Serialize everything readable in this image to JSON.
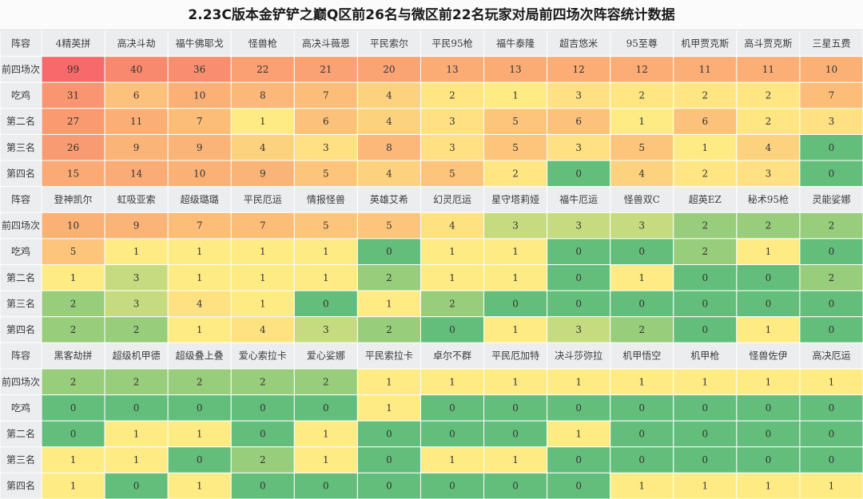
{
  "title": "2.23C版本金铲铲之巅Q区前26名与微区前22名玩家对局前四场次阵容统计数据",
  "chart_data": {
    "type": "heatmap",
    "title": "2.23C版本金铲铲之巅Q区前26名与微区前22名玩家对局前四场次阵容统计数据",
    "corner_label": "阵容",
    "row_labels": [
      "前四场次",
      "吃鸡",
      "第二名",
      "第三名",
      "第四名"
    ],
    "blocks": [
      {
        "columns": [
          "4精英拼",
          "高决斗劫",
          "福牛佛耶戈",
          "怪兽枪",
          "高决斗薇恩",
          "平民索尔",
          "平民95枪",
          "福牛泰隆",
          "超吉悠米",
          "95至尊",
          "机甲贾克斯",
          "高斗贾克斯",
          "三星五费"
        ],
        "rows": [
          [
            99,
            40,
            36,
            22,
            21,
            20,
            13,
            13,
            12,
            12,
            11,
            11,
            10
          ],
          [
            31,
            6,
            10,
            8,
            7,
            4,
            2,
            1,
            3,
            2,
            2,
            2,
            7
          ],
          [
            27,
            11,
            7,
            1,
            6,
            4,
            3,
            5,
            6,
            1,
            6,
            2,
            3
          ],
          [
            26,
            9,
            9,
            4,
            3,
            8,
            3,
            5,
            3,
            5,
            1,
            4,
            0
          ],
          [
            15,
            14,
            10,
            9,
            5,
            4,
            5,
            2,
            0,
            4,
            2,
            3,
            0
          ]
        ]
      },
      {
        "columns": [
          "登神凯尔",
          "虹吸亚索",
          "超级璐璐",
          "平民厄运",
          "情报怪兽",
          "英雄艾希",
          "幻灵厄运",
          "星守塔莉娅",
          "福牛厄运",
          "怪兽双C",
          "超英EZ",
          "秘术95枪",
          "灵能娑娜"
        ],
        "rows": [
          [
            10,
            9,
            7,
            7,
            5,
            5,
            4,
            3,
            3,
            3,
            2,
            2,
            2
          ],
          [
            5,
            1,
            1,
            1,
            1,
            0,
            1,
            1,
            0,
            0,
            2,
            1,
            0
          ],
          [
            1,
            3,
            1,
            1,
            1,
            2,
            1,
            1,
            0,
            1,
            0,
            0,
            2
          ],
          [
            2,
            3,
            4,
            1,
            0,
            1,
            2,
            0,
            0,
            0,
            0,
            0,
            0
          ],
          [
            2,
            2,
            1,
            4,
            3,
            2,
            0,
            1,
            3,
            2,
            0,
            1,
            0
          ]
        ]
      },
      {
        "columns": [
          "黑客劫拼",
          "超级机甲德",
          "超级叠上叠",
          "爱心索拉卡",
          "爱心娑娜",
          "平民索拉卡",
          "卓尔不群",
          "平民厄加特",
          "决斗莎弥拉",
          "机甲悟空",
          "机甲枪",
          "怪兽佐伊",
          "高决厄运"
        ],
        "rows": [
          [
            2,
            2,
            2,
            2,
            2,
            1,
            1,
            1,
            1,
            1,
            1,
            1,
            1
          ],
          [
            0,
            0,
            0,
            0,
            0,
            1,
            0,
            0,
            0,
            0,
            0,
            0,
            0
          ],
          [
            0,
            1,
            1,
            0,
            1,
            0,
            0,
            0,
            1,
            0,
            0,
            0,
            0
          ],
          [
            1,
            1,
            0,
            2,
            1,
            0,
            1,
            1,
            0,
            0,
            0,
            0,
            0
          ],
          [
            1,
            0,
            1,
            0,
            0,
            0,
            0,
            0,
            0,
            1,
            1,
            1,
            1
          ]
        ]
      }
    ],
    "colors": {
      "header_bg": "#ecedef",
      "grid": "#ffffff",
      "zero": "#63be7b",
      "low": "#ffeb84",
      "high": "#f8696b"
    }
  }
}
